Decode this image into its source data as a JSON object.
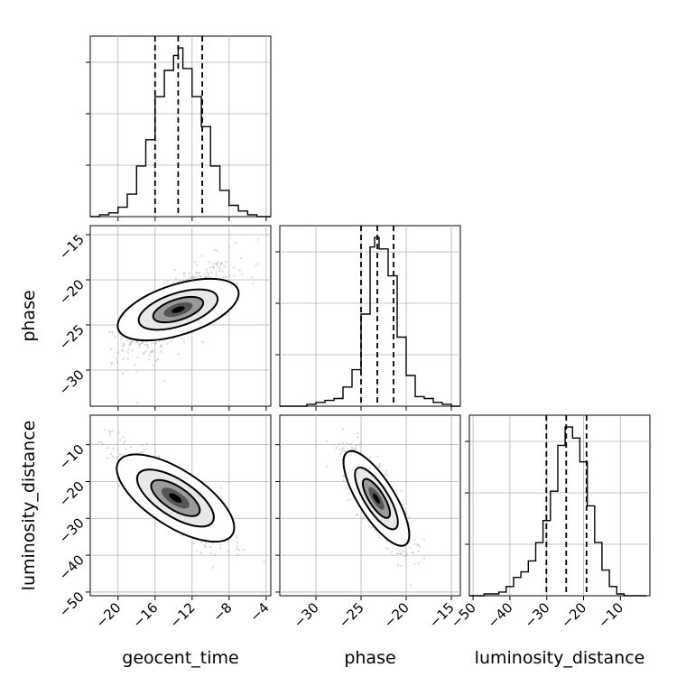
{
  "chart_data": {
    "type": "corner",
    "parameters": [
      "geocent_time",
      "phase",
      "luminosity_distance"
    ],
    "axes": {
      "geocent_time": {
        "range": [
          -23,
          -3.5
        ],
        "ticks": [
          -20,
          -16,
          -12,
          -8,
          -4
        ],
        "tick_labels": [
          "−20",
          "−16",
          "−12",
          "−8",
          "−4"
        ]
      },
      "phase": {
        "range": [
          -34,
          -14
        ],
        "ticks": [
          -15,
          -20,
          -25,
          -30
        ],
        "tick_labels": [
          "−15",
          "−20",
          "−25",
          "−30"
        ],
        "bottom_ticks": [
          -30,
          -25,
          -20,
          -15
        ]
      },
      "luminosity_distance": {
        "range": [
          -51,
          -2
        ],
        "ticks": [
          -10,
          -20,
          -30,
          -40,
          -50
        ],
        "tick_labels": [
          "−10",
          "−20",
          "−30",
          "−40",
          "−50"
        ],
        "bottom_ticks": [
          -50,
          -40,
          -30,
          -20,
          -10
        ]
      }
    },
    "marginals": [
      {
        "parameter": "geocent_time",
        "bin_edges": [
          -23,
          -22,
          -21,
          -20,
          -19,
          -18,
          -17,
          -16,
          -15,
          -14,
          -13.5,
          -13,
          -12,
          -11,
          -10,
          -9,
          -8,
          -7,
          -6,
          -5,
          -4,
          -3.5
        ],
        "counts": [
          0,
          1,
          2,
          5,
          12,
          27,
          41,
          64,
          78,
          86,
          90,
          79,
          64,
          48,
          27,
          14,
          6,
          3,
          1,
          0,
          0
        ],
        "quantiles": [
          -16.0,
          -13.5,
          -10.9
        ]
      },
      {
        "parameter": "phase",
        "bin_edges": [
          -34,
          -33,
          -32,
          -31,
          -30,
          -29,
          -28,
          -27,
          -26,
          -25,
          -24,
          -23.5,
          -23,
          -22,
          -21,
          -20,
          -19,
          -18,
          -17,
          -16,
          -15,
          -14
        ],
        "counts": [
          0,
          0,
          0,
          1,
          2,
          3,
          4,
          10,
          19,
          48,
          83,
          88,
          82,
          68,
          36,
          16,
          5,
          4,
          2,
          1,
          0
        ],
        "quantiles": [
          -25.0,
          -23.2,
          -21.4
        ]
      },
      {
        "parameter": "luminosity_distance",
        "bin_edges": [
          -51,
          -49,
          -47,
          -45,
          -43,
          -41,
          -39,
          -37,
          -35,
          -33,
          -31,
          -29,
          -27,
          -25,
          -23,
          -21,
          -19,
          -17,
          -15,
          -13,
          -11,
          -9,
          -7,
          -5,
          -3
        ],
        "counts": [
          0,
          0,
          1,
          1,
          2,
          5,
          10,
          13,
          19,
          29,
          41,
          57,
          82,
          92,
          86,
          73,
          49,
          29,
          14,
          5,
          1,
          0,
          0,
          0
        ],
        "quantiles": [
          -30.1,
          -24.7,
          -19.2
        ]
      }
    ],
    "joint": [
      {
        "x": "geocent_time",
        "y": "phase",
        "mean": [
          -13.5,
          -23.3
        ],
        "sd": [
          2.5,
          2.2
        ],
        "rho": 0.7,
        "orientation_deg": 18
      },
      {
        "x": "geocent_time",
        "y": "luminosity_distance",
        "mean": [
          -13.8,
          -24.5
        ],
        "sd": [
          2.6,
          6.0
        ],
        "rho": -0.85,
        "orientation_deg": -33
      },
      {
        "x": "phase",
        "y": "luminosity_distance",
        "mean": [
          -23.3,
          -24.6
        ],
        "sd": [
          1.6,
          6.0
        ],
        "rho": -0.8,
        "orientation_deg": -58
      }
    ],
    "grid": true
  }
}
